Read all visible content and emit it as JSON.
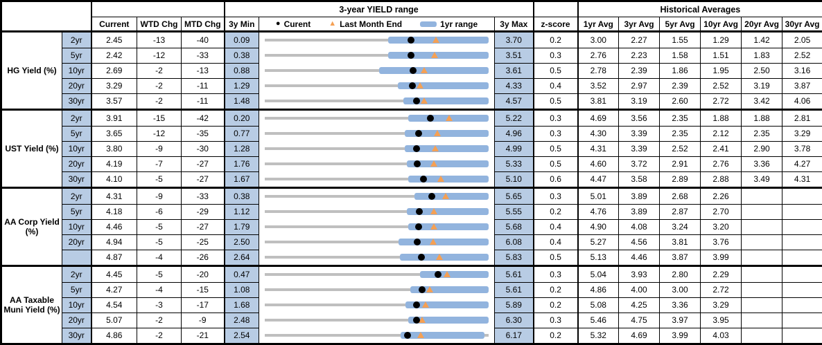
{
  "colors": {
    "bar_blue": "#92B4DE",
    "cell_blue": "#B8CCE4",
    "range_gray": "#BFBFBF",
    "marker_orange": "#F5A054",
    "marker_black": "#000000"
  },
  "chart_data": {
    "type": "table",
    "range_title": "3-year YIELD range",
    "hist_title": "Historical Averages",
    "columns": {
      "current": "Current",
      "wtd_chg": "WTD Chg",
      "mtd_chg": "MTD Chg",
      "min_3y": "3y Min",
      "max_3y": "3y Max",
      "z_score": "z-score",
      "avg_headers": [
        "1yr Avg",
        "3yr Avg",
        "5yr Avg",
        "10yr Avg",
        "20yr Avg",
        "30yr Avg"
      ]
    },
    "legend": {
      "current_label": "Curent",
      "last_month_label": "Last Month End",
      "range_label": "1yr range"
    },
    "groups": [
      {
        "label": "HG Yield (%)",
        "rows": [
          {
            "tenor": "2yr",
            "current": "2.45",
            "wtd": "-13",
            "mtd": "-40",
            "min": "0.09",
            "max": "3.70",
            "z": "0.2",
            "avgs": [
              "3.00",
              "2.27",
              "1.55",
              "1.29",
              "1.42",
              "2.05"
            ],
            "range": {
              "min": 0.09,
              "max": 3.7,
              "current": 2.45,
              "last_month_end": 2.85,
              "r1_low": 2.08,
              "r1_high": 3.7
            }
          },
          {
            "tenor": "5yr",
            "current": "2.42",
            "wtd": "-12",
            "mtd": "-33",
            "min": "0.38",
            "max": "3.51",
            "z": "0.3",
            "avgs": [
              "2.76",
              "2.23",
              "1.58",
              "1.51",
              "1.83",
              "2.52"
            ],
            "range": {
              "min": 0.38,
              "max": 3.51,
              "current": 2.42,
              "last_month_end": 2.75,
              "r1_low": 2.1,
              "r1_high": 3.51
            }
          },
          {
            "tenor": "10yr",
            "current": "2.69",
            "wtd": "-2",
            "mtd": "-13",
            "min": "0.88",
            "max": "3.61",
            "z": "0.5",
            "avgs": [
              "2.78",
              "2.39",
              "1.86",
              "1.95",
              "2.50",
              "3.16"
            ],
            "range": {
              "min": 0.88,
              "max": 3.61,
              "current": 2.69,
              "last_month_end": 2.82,
              "r1_low": 2.27,
              "r1_high": 3.61
            }
          },
          {
            "tenor": "20yr",
            "current": "3.29",
            "wtd": "-2",
            "mtd": "-11",
            "min": "1.29",
            "max": "4.33",
            "z": "0.4",
            "avgs": [
              "3.52",
              "2.97",
              "2.39",
              "2.52",
              "3.19",
              "3.87"
            ],
            "range": {
              "min": 1.29,
              "max": 4.33,
              "current": 3.29,
              "last_month_end": 3.4,
              "r1_low": 3.1,
              "r1_high": 4.33
            }
          },
          {
            "tenor": "30yr",
            "current": "3.57",
            "wtd": "-2",
            "mtd": "-11",
            "min": "1.48",
            "max": "4.57",
            "z": "0.5",
            "avgs": [
              "3.81",
              "3.19",
              "2.60",
              "2.72",
              "3.42",
              "4.06"
            ],
            "range": {
              "min": 1.48,
              "max": 4.57,
              "current": 3.57,
              "last_month_end": 3.68,
              "r1_low": 3.39,
              "r1_high": 4.57
            }
          }
        ]
      },
      {
        "label": "UST Yield (%)",
        "rows": [
          {
            "tenor": "2yr",
            "current": "3.91",
            "wtd": "-15",
            "mtd": "-42",
            "min": "0.20",
            "max": "5.22",
            "z": "0.3",
            "avgs": [
              "4.69",
              "3.56",
              "2.35",
              "1.88",
              "1.88",
              "2.81"
            ],
            "range": {
              "min": 0.2,
              "max": 5.22,
              "current": 3.91,
              "last_month_end": 4.33,
              "r1_low": 3.41,
              "r1_high": 5.22
            }
          },
          {
            "tenor": "5yr",
            "current": "3.65",
            "wtd": "-12",
            "mtd": "-35",
            "min": "0.77",
            "max": "4.96",
            "z": "0.3",
            "avgs": [
              "4.30",
              "3.39",
              "2.35",
              "2.12",
              "2.35",
              "3.29"
            ],
            "range": {
              "min": 0.77,
              "max": 4.96,
              "current": 3.65,
              "last_month_end": 4.0,
              "r1_low": 3.39,
              "r1_high": 4.96
            }
          },
          {
            "tenor": "10yr",
            "current": "3.80",
            "wtd": "-9",
            "mtd": "-30",
            "min": "1.28",
            "max": "4.99",
            "z": "0.5",
            "avgs": [
              "4.31",
              "3.39",
              "2.52",
              "2.41",
              "2.90",
              "3.78"
            ],
            "range": {
              "min": 1.28,
              "max": 4.99,
              "current": 3.8,
              "last_month_end": 4.1,
              "r1_low": 3.6,
              "r1_high": 4.99
            }
          },
          {
            "tenor": "20yr",
            "current": "4.19",
            "wtd": "-7",
            "mtd": "-27",
            "min": "1.76",
            "max": "5.33",
            "z": "0.5",
            "avgs": [
              "4.60",
              "3.72",
              "2.91",
              "2.76",
              "3.36",
              "4.27"
            ],
            "range": {
              "min": 1.76,
              "max": 5.33,
              "current": 4.19,
              "last_month_end": 4.46,
              "r1_low": 4.03,
              "r1_high": 5.33
            }
          },
          {
            "tenor": "30yr",
            "current": "4.10",
            "wtd": "-5",
            "mtd": "-27",
            "min": "1.67",
            "max": "5.10",
            "z": "0.6",
            "avgs": [
              "4.47",
              "3.58",
              "2.89",
              "2.88",
              "3.49",
              "4.31"
            ],
            "range": {
              "min": 1.67,
              "max": 5.1,
              "current": 4.1,
              "last_month_end": 4.37,
              "r1_low": 3.87,
              "r1_high": 5.1
            }
          }
        ]
      },
      {
        "label": "AA Corp Yield (%)",
        "rows": [
          {
            "tenor": "2yr",
            "current": "4.31",
            "wtd": "-9",
            "mtd": "-33",
            "min": "0.38",
            "max": "5.65",
            "z": "0.3",
            "avgs": [
              "5.01",
              "3.89",
              "2.68",
              "2.26",
              "",
              ""
            ],
            "range": {
              "min": 0.38,
              "max": 5.65,
              "current": 4.31,
              "last_month_end": 4.64,
              "r1_low": 3.91,
              "r1_high": 5.65
            }
          },
          {
            "tenor": "5yr",
            "current": "4.18",
            "wtd": "-6",
            "mtd": "-29",
            "min": "1.12",
            "max": "5.55",
            "z": "0.2",
            "avgs": [
              "4.76",
              "3.89",
              "2.87",
              "2.70",
              "",
              ""
            ],
            "range": {
              "min": 1.12,
              "max": 5.55,
              "current": 4.18,
              "last_month_end": 4.47,
              "r1_low": 3.93,
              "r1_high": 5.55
            }
          },
          {
            "tenor": "10yr",
            "current": "4.46",
            "wtd": "-5",
            "mtd": "-27",
            "min": "1.79",
            "max": "5.68",
            "z": "0.4",
            "avgs": [
              "4.90",
              "4.08",
              "3.24",
              "3.20",
              "",
              ""
            ],
            "range": {
              "min": 1.79,
              "max": 5.68,
              "current": 4.46,
              "last_month_end": 4.73,
              "r1_low": 4.28,
              "r1_high": 5.68
            }
          },
          {
            "tenor": "20yr",
            "current": "4.94",
            "wtd": "-5",
            "mtd": "-25",
            "min": "2.50",
            "max": "6.08",
            "z": "0.4",
            "avgs": [
              "5.27",
              "4.56",
              "3.81",
              "3.76",
              "",
              ""
            ],
            "range": {
              "min": 2.5,
              "max": 6.08,
              "current": 4.94,
              "last_month_end": 5.19,
              "r1_low": 4.64,
              "r1_high": 6.08
            }
          },
          {
            "tenor": "",
            "current": "4.87",
            "wtd": "-4",
            "mtd": "-26",
            "min": "2.64",
            "max": "5.83",
            "z": "0.5",
            "avgs": [
              "5.13",
              "4.46",
              "3.87",
              "3.99",
              "",
              ""
            ],
            "range": {
              "min": 2.64,
              "max": 5.83,
              "current": 4.87,
              "last_month_end": 5.13,
              "r1_low": 4.57,
              "r1_high": 5.83
            }
          }
        ]
      },
      {
        "label": "AA Taxable Muni Yield (%)",
        "rows": [
          {
            "tenor": "2yr",
            "current": "4.45",
            "wtd": "-5",
            "mtd": "-20",
            "min": "0.47",
            "max": "5.61",
            "z": "0.3",
            "avgs": [
              "5.04",
              "3.93",
              "2.80",
              "2.29",
              "",
              ""
            ],
            "range": {
              "min": 0.47,
              "max": 5.61,
              "current": 4.45,
              "last_month_end": 4.65,
              "r1_low": 4.04,
              "r1_high": 5.61
            }
          },
          {
            "tenor": "5yr",
            "current": "4.27",
            "wtd": "-4",
            "mtd": "-15",
            "min": "1.08",
            "max": "5.61",
            "z": "0.2",
            "avgs": [
              "4.86",
              "4.00",
              "3.00",
              "2.72",
              "",
              ""
            ],
            "range": {
              "min": 1.08,
              "max": 5.61,
              "current": 4.27,
              "last_month_end": 4.42,
              "r1_low": 4.02,
              "r1_high": 5.61
            }
          },
          {
            "tenor": "10yr",
            "current": "4.54",
            "wtd": "-3",
            "mtd": "-17",
            "min": "1.68",
            "max": "5.89",
            "z": "0.2",
            "avgs": [
              "5.08",
              "4.25",
              "3.36",
              "3.29",
              "",
              ""
            ],
            "range": {
              "min": 1.68,
              "max": 5.89,
              "current": 4.54,
              "last_month_end": 4.71,
              "r1_low": 4.32,
              "r1_high": 5.89
            }
          },
          {
            "tenor": "20yr",
            "current": "5.07",
            "wtd": "-2",
            "mtd": "-9",
            "min": "2.48",
            "max": "6.30",
            "z": "0.3",
            "avgs": [
              "5.46",
              "4.75",
              "3.97",
              "3.95",
              "",
              ""
            ],
            "range": {
              "min": 2.48,
              "max": 6.3,
              "current": 5.07,
              "last_month_end": 5.16,
              "r1_low": 4.93,
              "r1_high": 6.3
            }
          },
          {
            "tenor": "30yr",
            "current": "4.86",
            "wtd": "-2",
            "mtd": "-21",
            "min": "2.54",
            "max": "6.17",
            "z": "0.2",
            "avgs": [
              "5.32",
              "4.69",
              "3.99",
              "4.03",
              "",
              ""
            ],
            "range": {
              "min": 2.54,
              "max": 6.17,
              "current": 4.86,
              "last_month_end": 5.07,
              "r1_low": 4.74,
              "r1_high": 6.1
            }
          }
        ]
      }
    ]
  }
}
